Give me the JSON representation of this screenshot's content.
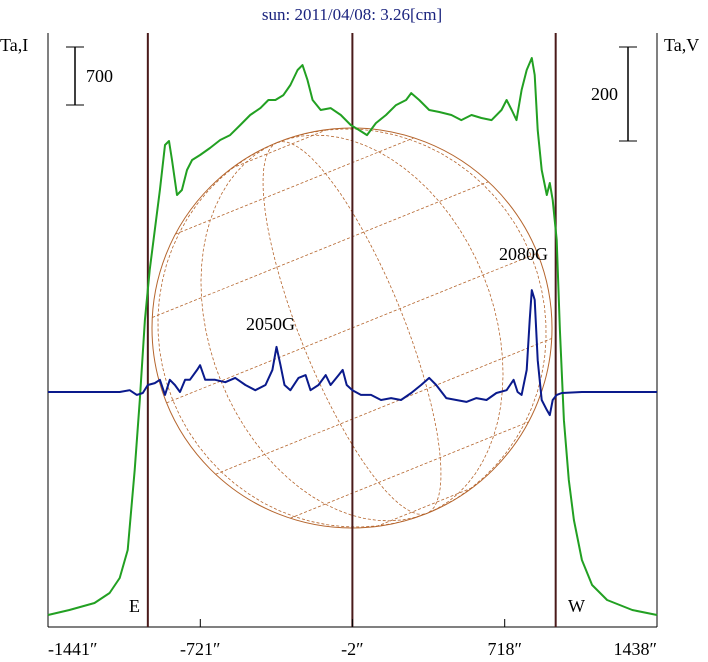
{
  "chart_data": {
    "type": "line",
    "title": "sun: 2011/04/08: 3.26[cm]",
    "xlim": [
      -1441,
      1438
    ],
    "xticks": [
      {
        "value": -1441,
        "label": "-1441″"
      },
      {
        "value": -721,
        "label": "-721″"
      },
      {
        "value": -2,
        "label": "-2″"
      },
      {
        "value": 718,
        "label": "718″"
      },
      {
        "value": 1438,
        "label": "1438″"
      }
    ],
    "ylim": [
      0,
      7170
    ],
    "y2lim": [
      -500,
      764
    ],
    "vlines": [
      -969,
      -2,
      959
    ],
    "scale_bars": [
      {
        "value": 700,
        "axis": "y"
      },
      {
        "value": 200,
        "axis": "y2"
      }
    ],
    "annotations": [
      "2050G",
      "2080G",
      "E",
      "W"
    ],
    "series": [
      {
        "name": "Ta,I",
        "color": "#22a022",
        "x": [
          -1441,
          -1340,
          -1221,
          -1150,
          -1102,
          -1064,
          -1031,
          -1007,
          -983,
          -960,
          -936,
          -912,
          -888,
          -869,
          -855,
          -831,
          -808,
          -784,
          -760,
          -722,
          -675,
          -627,
          -580,
          -532,
          -485,
          -437,
          -399,
          -366,
          -328,
          -295,
          -261,
          -238,
          -214,
          -190,
          -152,
          -105,
          -57,
          -10,
          29,
          67,
          109,
          157,
          204,
          252,
          276,
          314,
          361,
          409,
          466,
          513,
          561,
          608,
          656,
          703,
          727,
          751,
          774,
          798,
          822,
          846,
          860,
          874,
          893,
          917,
          931,
          945,
          964,
          979,
          998,
          1021,
          1045,
          1083,
          1131,
          1202,
          1321,
          1438
        ],
        "values": [
          145,
          205,
          290,
          410,
          591,
          929,
          1895,
          2740,
          3705,
          4309,
          4792,
          5275,
          5818,
          5866,
          5637,
          5214,
          5275,
          5516,
          5637,
          5697,
          5782,
          5878,
          5938,
          6059,
          6180,
          6264,
          6361,
          6361,
          6421,
          6542,
          6723,
          6783,
          6602,
          6361,
          6240,
          6264,
          6180,
          6059,
          5999,
          5938,
          6083,
          6180,
          6300,
          6361,
          6445,
          6361,
          6240,
          6216,
          6180,
          6119,
          6180,
          6144,
          6119,
          6240,
          6361,
          6240,
          6119,
          6482,
          6723,
          6868,
          6663,
          5999,
          5516,
          5214,
          5359,
          5154,
          4671,
          3585,
          2498,
          1774,
          1291,
          809,
          507,
          326,
          205,
          145
        ]
      },
      {
        "name": "Ta,V",
        "color": "#0a1a8c",
        "axis": "y2",
        "x": [
          -1441,
          -1102,
          -1055,
          -1021,
          -993,
          -969,
          -936,
          -912,
          -888,
          -865,
          -841,
          -817,
          -793,
          -770,
          -736,
          -722,
          -698,
          -651,
          -603,
          -556,
          -508,
          -461,
          -413,
          -380,
          -361,
          -342,
          -323,
          -295,
          -257,
          -223,
          -200,
          -162,
          -128,
          -105,
          -67,
          -48,
          -29,
          -2,
          38,
          86,
          133,
          181,
          228,
          276,
          323,
          361,
          394,
          442,
          489,
          537,
          584,
          632,
          679,
          727,
          760,
          779,
          798,
          822,
          836,
          846,
          860,
          874,
          893,
          917,
          931,
          945,
          964,
          988,
          1083,
          1438
        ],
        "values": [
          0,
          0,
          4,
          -6,
          -2,
          15,
          19,
          26,
          -6,
          26,
          15,
          0,
          26,
          26,
          47,
          57,
          26,
          26,
          21,
          30,
          15,
          4,
          15,
          47,
          96,
          57,
          15,
          4,
          30,
          36,
          4,
          15,
          36,
          15,
          36,
          47,
          15,
          4,
          -6,
          -6,
          -17,
          -13,
          -17,
          -2,
          15,
          30,
          15,
          -13,
          -17,
          -21,
          -13,
          -17,
          -2,
          4,
          26,
          0,
          -6,
          47,
          153,
          217,
          196,
          68,
          -17,
          -38,
          -49,
          -17,
          -6,
          -2,
          0,
          0
        ]
      }
    ]
  }
}
